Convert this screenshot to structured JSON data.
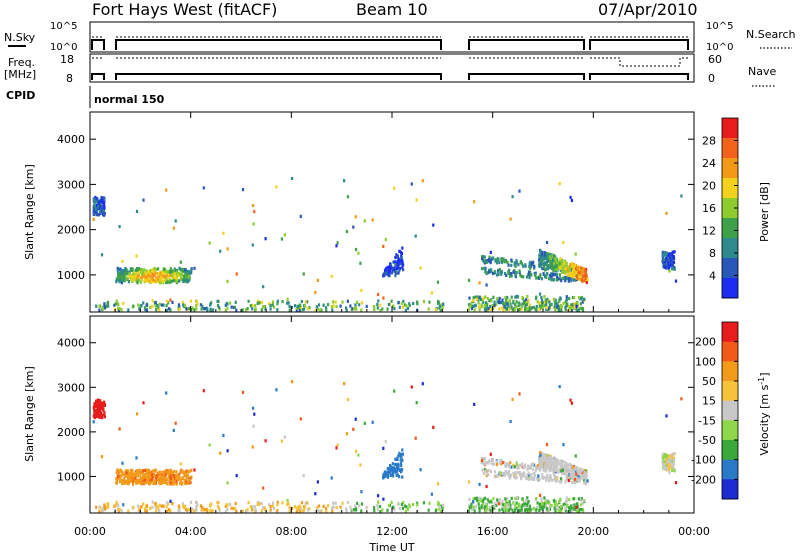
{
  "header": {
    "radar": "Fort Hays West (fitACF)",
    "beam": "Beam 10",
    "date": "07/Apr/2010"
  },
  "summary": {
    "nsky_label": "N.Sky",
    "nsky_ticks": [
      "10^5",
      "10^0"
    ],
    "nsearch_label": "N.Search",
    "nsearch_ticks": [
      "10^5",
      "10^0"
    ],
    "freq_label": "Freq.",
    "freq_unit": "[MHz]",
    "freq_ticks": [
      "18",
      "8"
    ],
    "nave_label": "Nave",
    "nave_ticks": [
      "60",
      "0"
    ],
    "cpid_label": "CPID",
    "cpid_value": "normal 150"
  },
  "chart_data": [
    {
      "type": "heatmap",
      "panel": "power",
      "ylabel": "Slant Range [km]",
      "ylim": [
        180,
        4600
      ],
      "yticks": [
        "1000",
        "2000",
        "3000",
        "4000"
      ],
      "ytick_values": [
        1000,
        2000,
        3000,
        4000
      ],
      "colorbar_label": "Power [dB]",
      "colorbar_ticks": [
        "4",
        "8",
        "12",
        "16",
        "20",
        "24",
        "28"
      ],
      "colorbar_range": [
        0,
        32
      ],
      "colorbar_colors": [
        "#1c2cf0",
        "#2a58b8",
        "#2f8a8e",
        "#3fa04a",
        "#8ccc2c",
        "#f2d21c",
        "#f29a16",
        "#f2621a",
        "#e81c1c"
      ]
    },
    {
      "type": "heatmap",
      "panel": "velocity",
      "ylabel": "Slant Range [km]",
      "ylim": [
        180,
        4600
      ],
      "yticks": [
        "1000",
        "2000",
        "3000",
        "4000"
      ],
      "ytick_values": [
        1000,
        2000,
        3000,
        4000
      ],
      "colorbar_label": "Velocity [m s",
      "colorbar_label_sup": "-1",
      "colorbar_label_end": "]",
      "colorbar_ticks": [
        "200",
        "100",
        "50",
        "15",
        "-15",
        "-50",
        "-100",
        "-200"
      ],
      "colorbar_colors": [
        "#1c2cd0",
        "#2a7ac8",
        "#3aa83a",
        "#8ed64a",
        "#c8c8c8",
        "#f6c23a",
        "#f29a1a",
        "#f25a1a",
        "#e81c1c"
      ]
    }
  ],
  "xaxis": {
    "label": "Time UT",
    "ticks": [
      "00:00",
      "04:00",
      "08:00",
      "12:00",
      "16:00",
      "20:00",
      "00:00"
    ],
    "range_hours": [
      0,
      24
    ]
  },
  "echo_regions": [
    {
      "t": [
        1.0,
        4.0
      ],
      "r": [
        860,
        1180
      ],
      "kind": "core",
      "pv": 24,
      "vel": -80
    },
    {
      "t": [
        0.1,
        0.55
      ],
      "r": [
        2350,
        2750
      ],
      "kind": "patch",
      "pv": 6,
      "vel": -180
    },
    {
      "t": [
        11.6,
        12.4
      ],
      "r": [
        950,
        1750
      ],
      "kind": "plume",
      "pv": 4,
      "vel": 120
    },
    {
      "t": [
        15.5,
        19.3
      ],
      "r": [
        850,
        1600
      ],
      "kind": "band",
      "pv": 10,
      "vel": 0
    },
    {
      "t": [
        17.8,
        19.7
      ],
      "r": [
        800,
        1550
      ],
      "kind": "hot",
      "pv": 22,
      "vel": 0
    },
    {
      "t": [
        22.7,
        23.2
      ],
      "r": [
        1150,
        1550
      ],
      "kind": "patch",
      "pv": 5,
      "vel": 0
    },
    {
      "t": [
        0.2,
        14.0
      ],
      "r": [
        200,
        460
      ],
      "kind": "ground",
      "pv": 8,
      "vel": -20
    },
    {
      "t": [
        15.0,
        19.7
      ],
      "r": [
        200,
        560
      ],
      "kind": "ground",
      "pv": 8,
      "vel": 20
    }
  ]
}
